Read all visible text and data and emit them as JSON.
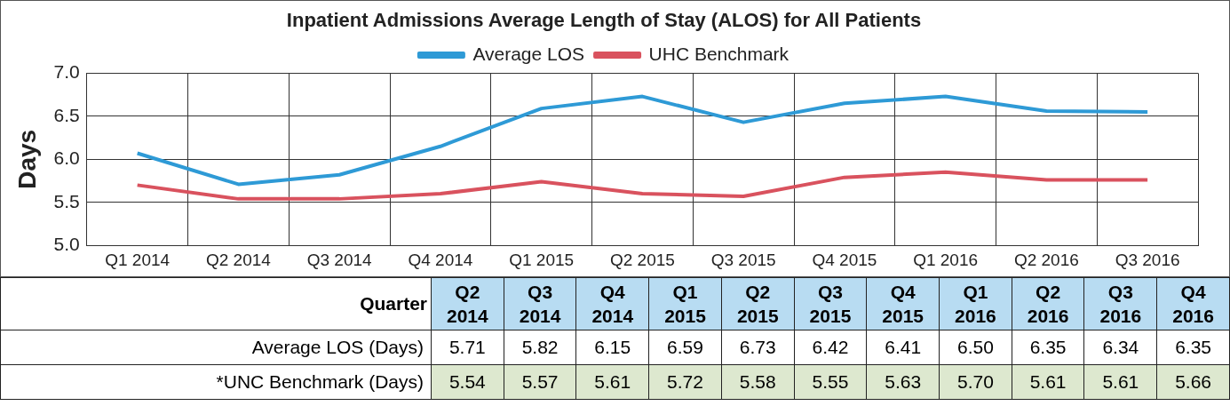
{
  "chart_data": [
    {
      "type": "line",
      "title": "Inpatient Admissions Average Length of Stay (ALOS) for All Patients",
      "ylabel": "Days",
      "categories": [
        "Q1 2014",
        "Q2 2014",
        "Q3 2014",
        "Q4 2014",
        "Q1 2015",
        "Q2 2015",
        "Q3 2015",
        "Q4 2015",
        "Q1 2016",
        "Q2 2016",
        "Q3 2016"
      ],
      "series": [
        {
          "name": "Average LOS",
          "color": "#2e9ad6",
          "values": [
            6.07,
            5.71,
            5.82,
            6.15,
            6.59,
            6.73,
            6.43,
            6.65,
            6.73,
            6.56,
            6.55
          ]
        },
        {
          "name": "UHC Benchmark",
          "color": "#d9525e",
          "values": [
            5.7,
            5.54,
            5.54,
            5.6,
            5.74,
            5.6,
            5.57,
            5.79,
            5.85,
            5.76,
            5.76
          ]
        }
      ],
      "ylim": [
        5.0,
        7.0
      ],
      "yticks": [
        {
          "value": 5,
          "label": "5.0"
        },
        {
          "value": 5.5,
          "label": "5.5"
        },
        {
          "value": 6,
          "label": "6.0"
        },
        {
          "value": 6.5,
          "label": "6.5"
        },
        {
          "value": 7,
          "label": "7.0"
        }
      ],
      "grid": true,
      "legend": "top",
      "marker": "none",
      "line_style": "solid"
    },
    {
      "type": "other",
      "xlabel": "Quarter",
      "categories": [
        "Q2 2014",
        "Q3 2014",
        "Q4 2014",
        "Q1 2015",
        "Q2 2015",
        "Q3 2015",
        "Q4 2015",
        "Q1 2016",
        "Q2 2016",
        "Q3 2016",
        "Q4 2016"
      ],
      "series": [
        {
          "name": "Average LOS (Days)",
          "color": "#ffffff",
          "values": [
            5.71,
            5.82,
            6.15,
            6.59,
            6.73,
            6.42,
            6.41,
            6.5,
            6.35,
            6.34,
            6.35
          ],
          "value_labels": [
            "5.71",
            "5.82",
            "6.15",
            "6.59",
            "6.73",
            "6.42",
            "6.41",
            "6.50",
            "6.35",
            "6.34",
            "6.35"
          ]
        },
        {
          "name": "*UNC Benchmark (Days)",
          "color": "#dde8cf",
          "values": [
            5.54,
            5.57,
            5.61,
            5.72,
            5.58,
            5.55,
            5.63,
            5.7,
            5.61,
            5.61,
            5.66
          ],
          "value_labels": [
            "5.54",
            "5.57",
            "5.61",
            "5.72",
            "5.58",
            "5.55",
            "5.63",
            "5.70",
            "5.61",
            "5.61",
            "5.66"
          ]
        }
      ]
    }
  ]
}
